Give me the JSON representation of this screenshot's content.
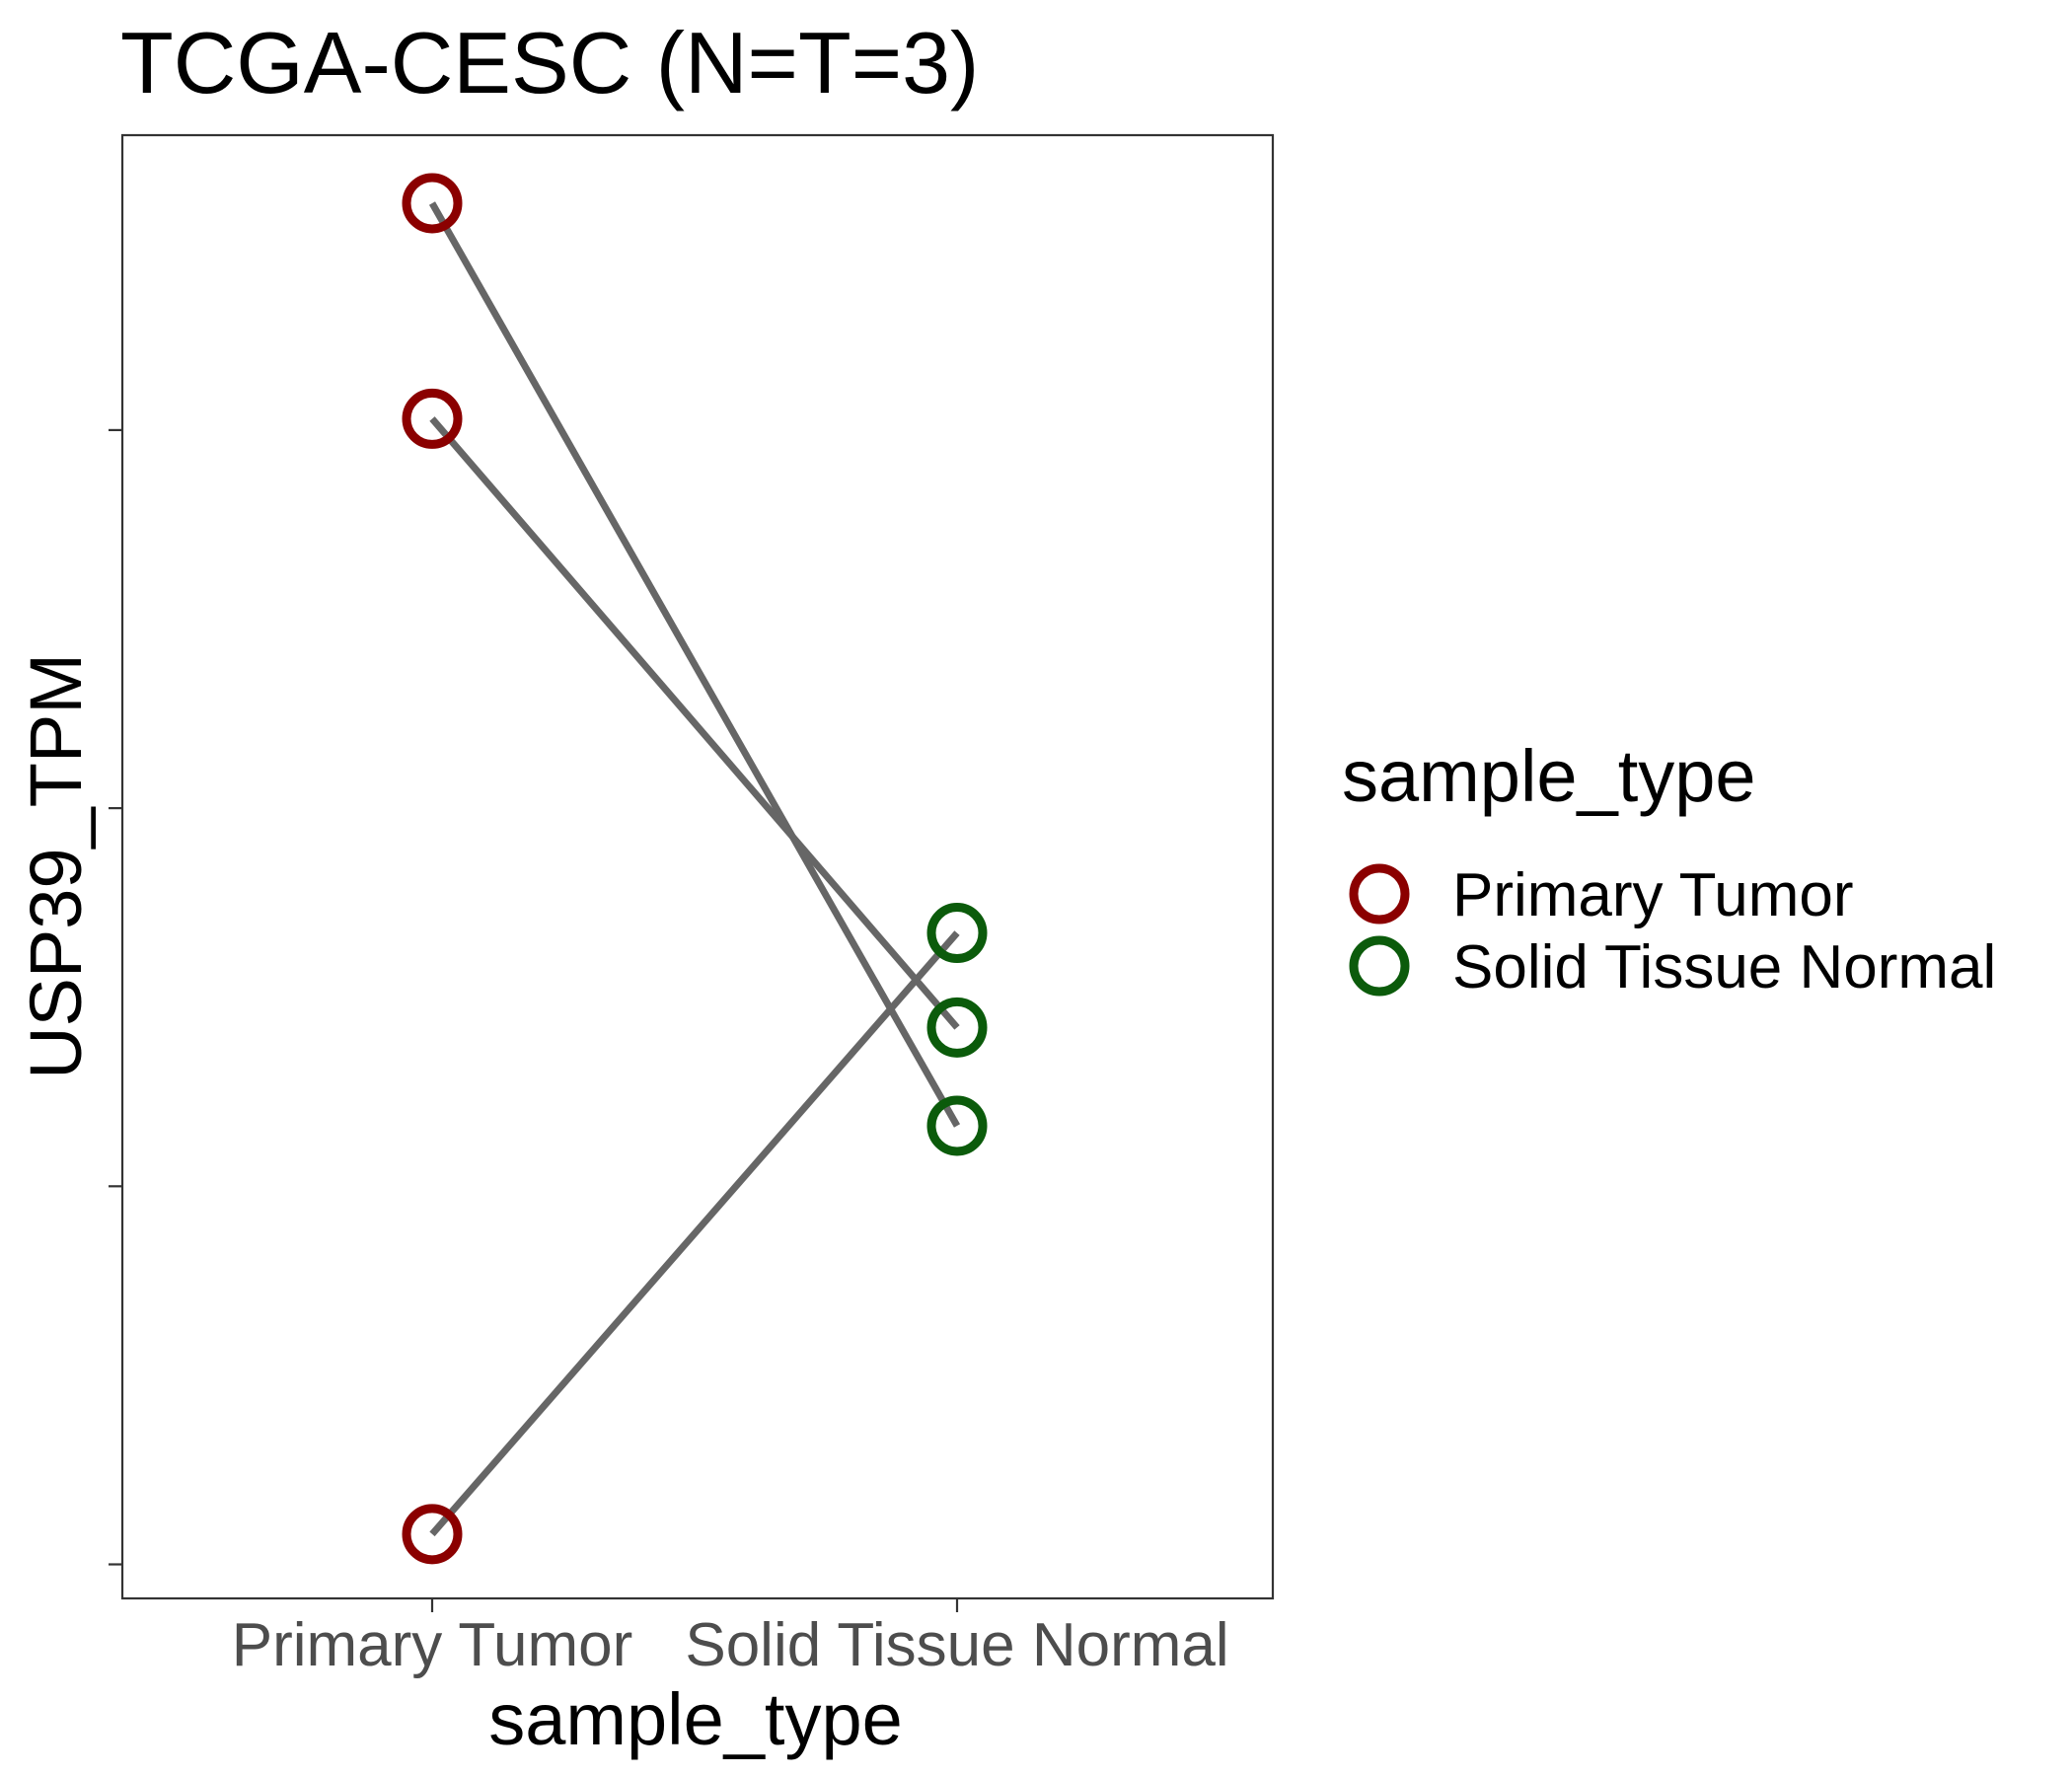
{
  "chart_data": {
    "type": "line",
    "title": "TCGA-CESC  (N=T=3)",
    "xlabel": "sample_type",
    "ylabel": "USP39_TPM",
    "categories": [
      "Primary Tumor",
      "Solid Tissue Normal"
    ],
    "y_tick_values": [
      0,
      1,
      2,
      3
    ],
    "y_tick_labels_shown": false,
    "ylim": [
      -0.09,
      3.78
    ],
    "grid": false,
    "pairs": [
      {
        "values": [
          3.6,
          1.16
        ]
      },
      {
        "values": [
          3.03,
          1.42
        ]
      },
      {
        "values": [
          0.08,
          1.67
        ]
      }
    ],
    "legend": {
      "title": "sample_type",
      "position": "right",
      "entries": [
        {
          "label": "Primary Tumor",
          "color": "#8b0000"
        },
        {
          "label": "Solid Tissue Normal",
          "color": "#0b5b0b"
        }
      ]
    },
    "colors": {
      "line": "#666666",
      "panel_border": "#333333"
    }
  }
}
